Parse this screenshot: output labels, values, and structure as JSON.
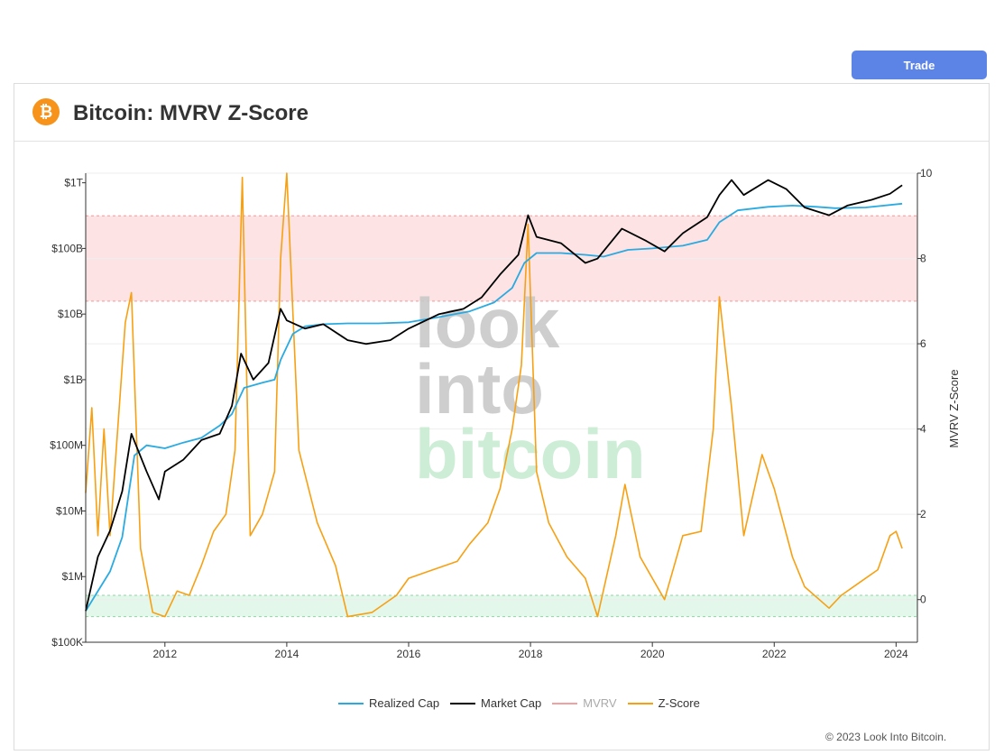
{
  "header": {
    "trade_button": "Trade",
    "title": "Bitcoin: MVRV Z-Score",
    "logo_glyph": "₿"
  },
  "footer": {
    "copyright": "© 2023 Look Into Bitcoin."
  },
  "watermark": [
    "look",
    "into",
    "bitcoin"
  ],
  "colors": {
    "realized_cap": "#29abe2",
    "market_cap": "#000000",
    "mvrv": "#f2a0a0",
    "z_score": "#f7a012",
    "top_band": "#fde3e3",
    "bottom_band": "#e3f7ea",
    "button": "#5b84e6",
    "logo": "#f7931a"
  },
  "chart_data": {
    "type": "line",
    "title": "Bitcoin: MVRV Z-Score",
    "x_ticks": [
      "2012",
      "2014",
      "2016",
      "2018",
      "2020",
      "2022",
      "2024"
    ],
    "x_range": [
      2010.7,
      2024.35
    ],
    "y_left": {
      "scale": "log",
      "range": [
        100000,
        1400000000000
      ],
      "ticks": [
        {
          "value": 1000000000000,
          "label": "$1T"
        },
        {
          "value": 100000000000,
          "label": "$100B"
        },
        {
          "value": 10000000000,
          "label": "$10B"
        },
        {
          "value": 1000000000,
          "label": "$1B"
        },
        {
          "value": 100000000,
          "label": "$100M"
        },
        {
          "value": 10000000,
          "label": "$10M"
        },
        {
          "value": 1000000,
          "label": "$1M"
        },
        {
          "value": 100000,
          "label": "$100K"
        }
      ]
    },
    "y_right": {
      "label": "MVRV Z-Score",
      "range": [
        -1,
        10
      ],
      "ticks": [
        0,
        2,
        4,
        6,
        8,
        10
      ]
    },
    "bands": [
      {
        "name": "top",
        "from": 7,
        "to": 9
      },
      {
        "name": "bottom",
        "from": -0.4,
        "to": 0.1
      }
    ],
    "legend": [
      "Realized Cap",
      "Market Cap",
      "MVRV",
      "Z-Score"
    ],
    "series": [
      {
        "name": "Realized Cap",
        "axis": "left",
        "x": [
          2010.7,
          2010.9,
          2011.1,
          2011.3,
          2011.5,
          2011.7,
          2012.0,
          2012.3,
          2012.6,
          2012.9,
          2013.1,
          2013.3,
          2013.6,
          2013.8,
          2013.9,
          2014.1,
          2014.3,
          2014.6,
          2015.0,
          2015.5,
          2016.0,
          2016.5,
          2017.0,
          2017.4,
          2017.7,
          2017.9,
          2018.1,
          2018.5,
          2018.9,
          2019.2,
          2019.6,
          2020.0,
          2020.5,
          2020.9,
          2021.1,
          2021.4,
          2021.9,
          2022.3,
          2022.7,
          2023.0,
          2023.5,
          2024.1
        ],
        "y": [
          300000,
          600000,
          1200000,
          4000000,
          70000000,
          100000000,
          90000000,
          110000000,
          130000000,
          200000000,
          300000000,
          750000000,
          900000000,
          1000000000,
          2000000000,
          5000000000,
          6500000000,
          7000000000,
          7200000000,
          7200000000,
          7500000000,
          9000000000,
          11000000000,
          15000000000,
          25000000000,
          60000000000,
          85000000000,
          85000000000,
          80000000000,
          75000000000,
          95000000000,
          100000000000,
          110000000000,
          135000000000,
          250000000000,
          380000000000,
          430000000000,
          450000000000,
          430000000000,
          410000000000,
          420000000000,
          480000000000
        ]
      },
      {
        "name": "Market Cap",
        "axis": "left",
        "x": [
          2010.7,
          2010.9,
          2011.1,
          2011.3,
          2011.45,
          2011.7,
          2011.9,
          2012.0,
          2012.3,
          2012.6,
          2012.9,
          2013.1,
          2013.25,
          2013.45,
          2013.7,
          2013.9,
          2014.0,
          2014.3,
          2014.6,
          2015.0,
          2015.3,
          2015.7,
          2016.0,
          2016.5,
          2016.9,
          2017.2,
          2017.5,
          2017.8,
          2017.96,
          2018.1,
          2018.5,
          2018.9,
          2019.1,
          2019.5,
          2019.9,
          2020.2,
          2020.5,
          2020.9,
          2021.1,
          2021.3,
          2021.5,
          2021.9,
          2022.2,
          2022.5,
          2022.9,
          2023.2,
          2023.6,
          2023.9,
          2024.1
        ],
        "y": [
          300000,
          2000000,
          5000000,
          20000000,
          150000000,
          40000000,
          15000000,
          40000000,
          60000000,
          120000000,
          150000000,
          400000000,
          2500000000,
          1000000000,
          1800000000,
          12000000000,
          8000000000,
          6000000000,
          7000000000,
          4000000000,
          3500000000,
          4000000000,
          6000000000,
          10000000000,
          12000000000,
          18000000000,
          40000000000,
          80000000000,
          320000000000,
          150000000000,
          120000000000,
          60000000000,
          70000000000,
          200000000000,
          130000000000,
          90000000000,
          170000000000,
          300000000000,
          650000000000,
          1100000000000,
          650000000000,
          1100000000000,
          800000000000,
          420000000000,
          320000000000,
          450000000000,
          550000000000,
          680000000000,
          920000000000
        ]
      },
      {
        "name": "Z-Score",
        "axis": "right",
        "x": [
          2010.7,
          2010.8,
          2010.9,
          2011.0,
          2011.1,
          2011.2,
          2011.35,
          2011.45,
          2011.6,
          2011.8,
          2012.0,
          2012.2,
          2012.4,
          2012.6,
          2012.8,
          2013.0,
          2013.15,
          2013.27,
          2013.4,
          2013.6,
          2013.8,
          2013.9,
          2014.0,
          2014.2,
          2014.5,
          2014.8,
          2015.0,
          2015.4,
          2015.8,
          2016.0,
          2016.4,
          2016.8,
          2017.0,
          2017.3,
          2017.5,
          2017.7,
          2017.85,
          2017.96,
          2018.1,
          2018.3,
          2018.6,
          2018.9,
          2019.1,
          2019.4,
          2019.55,
          2019.8,
          2020.0,
          2020.2,
          2020.5,
          2020.8,
          2021.0,
          2021.1,
          2021.3,
          2021.5,
          2021.8,
          2022.0,
          2022.3,
          2022.5,
          2022.9,
          2023.1,
          2023.4,
          2023.7,
          2023.9,
          2024.0,
          2024.1
        ],
        "y": [
          2.5,
          4.5,
          1.5,
          4.0,
          1.5,
          3.5,
          6.5,
          7.2,
          1.2,
          -0.3,
          -0.4,
          0.2,
          0.1,
          0.8,
          1.6,
          2.0,
          3.5,
          9.9,
          1.5,
          2.0,
          3.0,
          8.0,
          10.0,
          3.5,
          1.8,
          0.8,
          -0.4,
          -0.3,
          0.1,
          0.5,
          0.7,
          0.9,
          1.3,
          1.8,
          2.6,
          4.0,
          5.5,
          8.8,
          3.0,
          1.8,
          1.0,
          0.5,
          -0.4,
          1.5,
          2.7,
          1.0,
          0.5,
          0.0,
          1.5,
          1.6,
          4.0,
          7.1,
          4.5,
          1.5,
          3.4,
          2.6,
          1.0,
          0.3,
          -0.2,
          0.1,
          0.4,
          0.7,
          1.5,
          1.6,
          1.2
        ]
      }
    ]
  }
}
